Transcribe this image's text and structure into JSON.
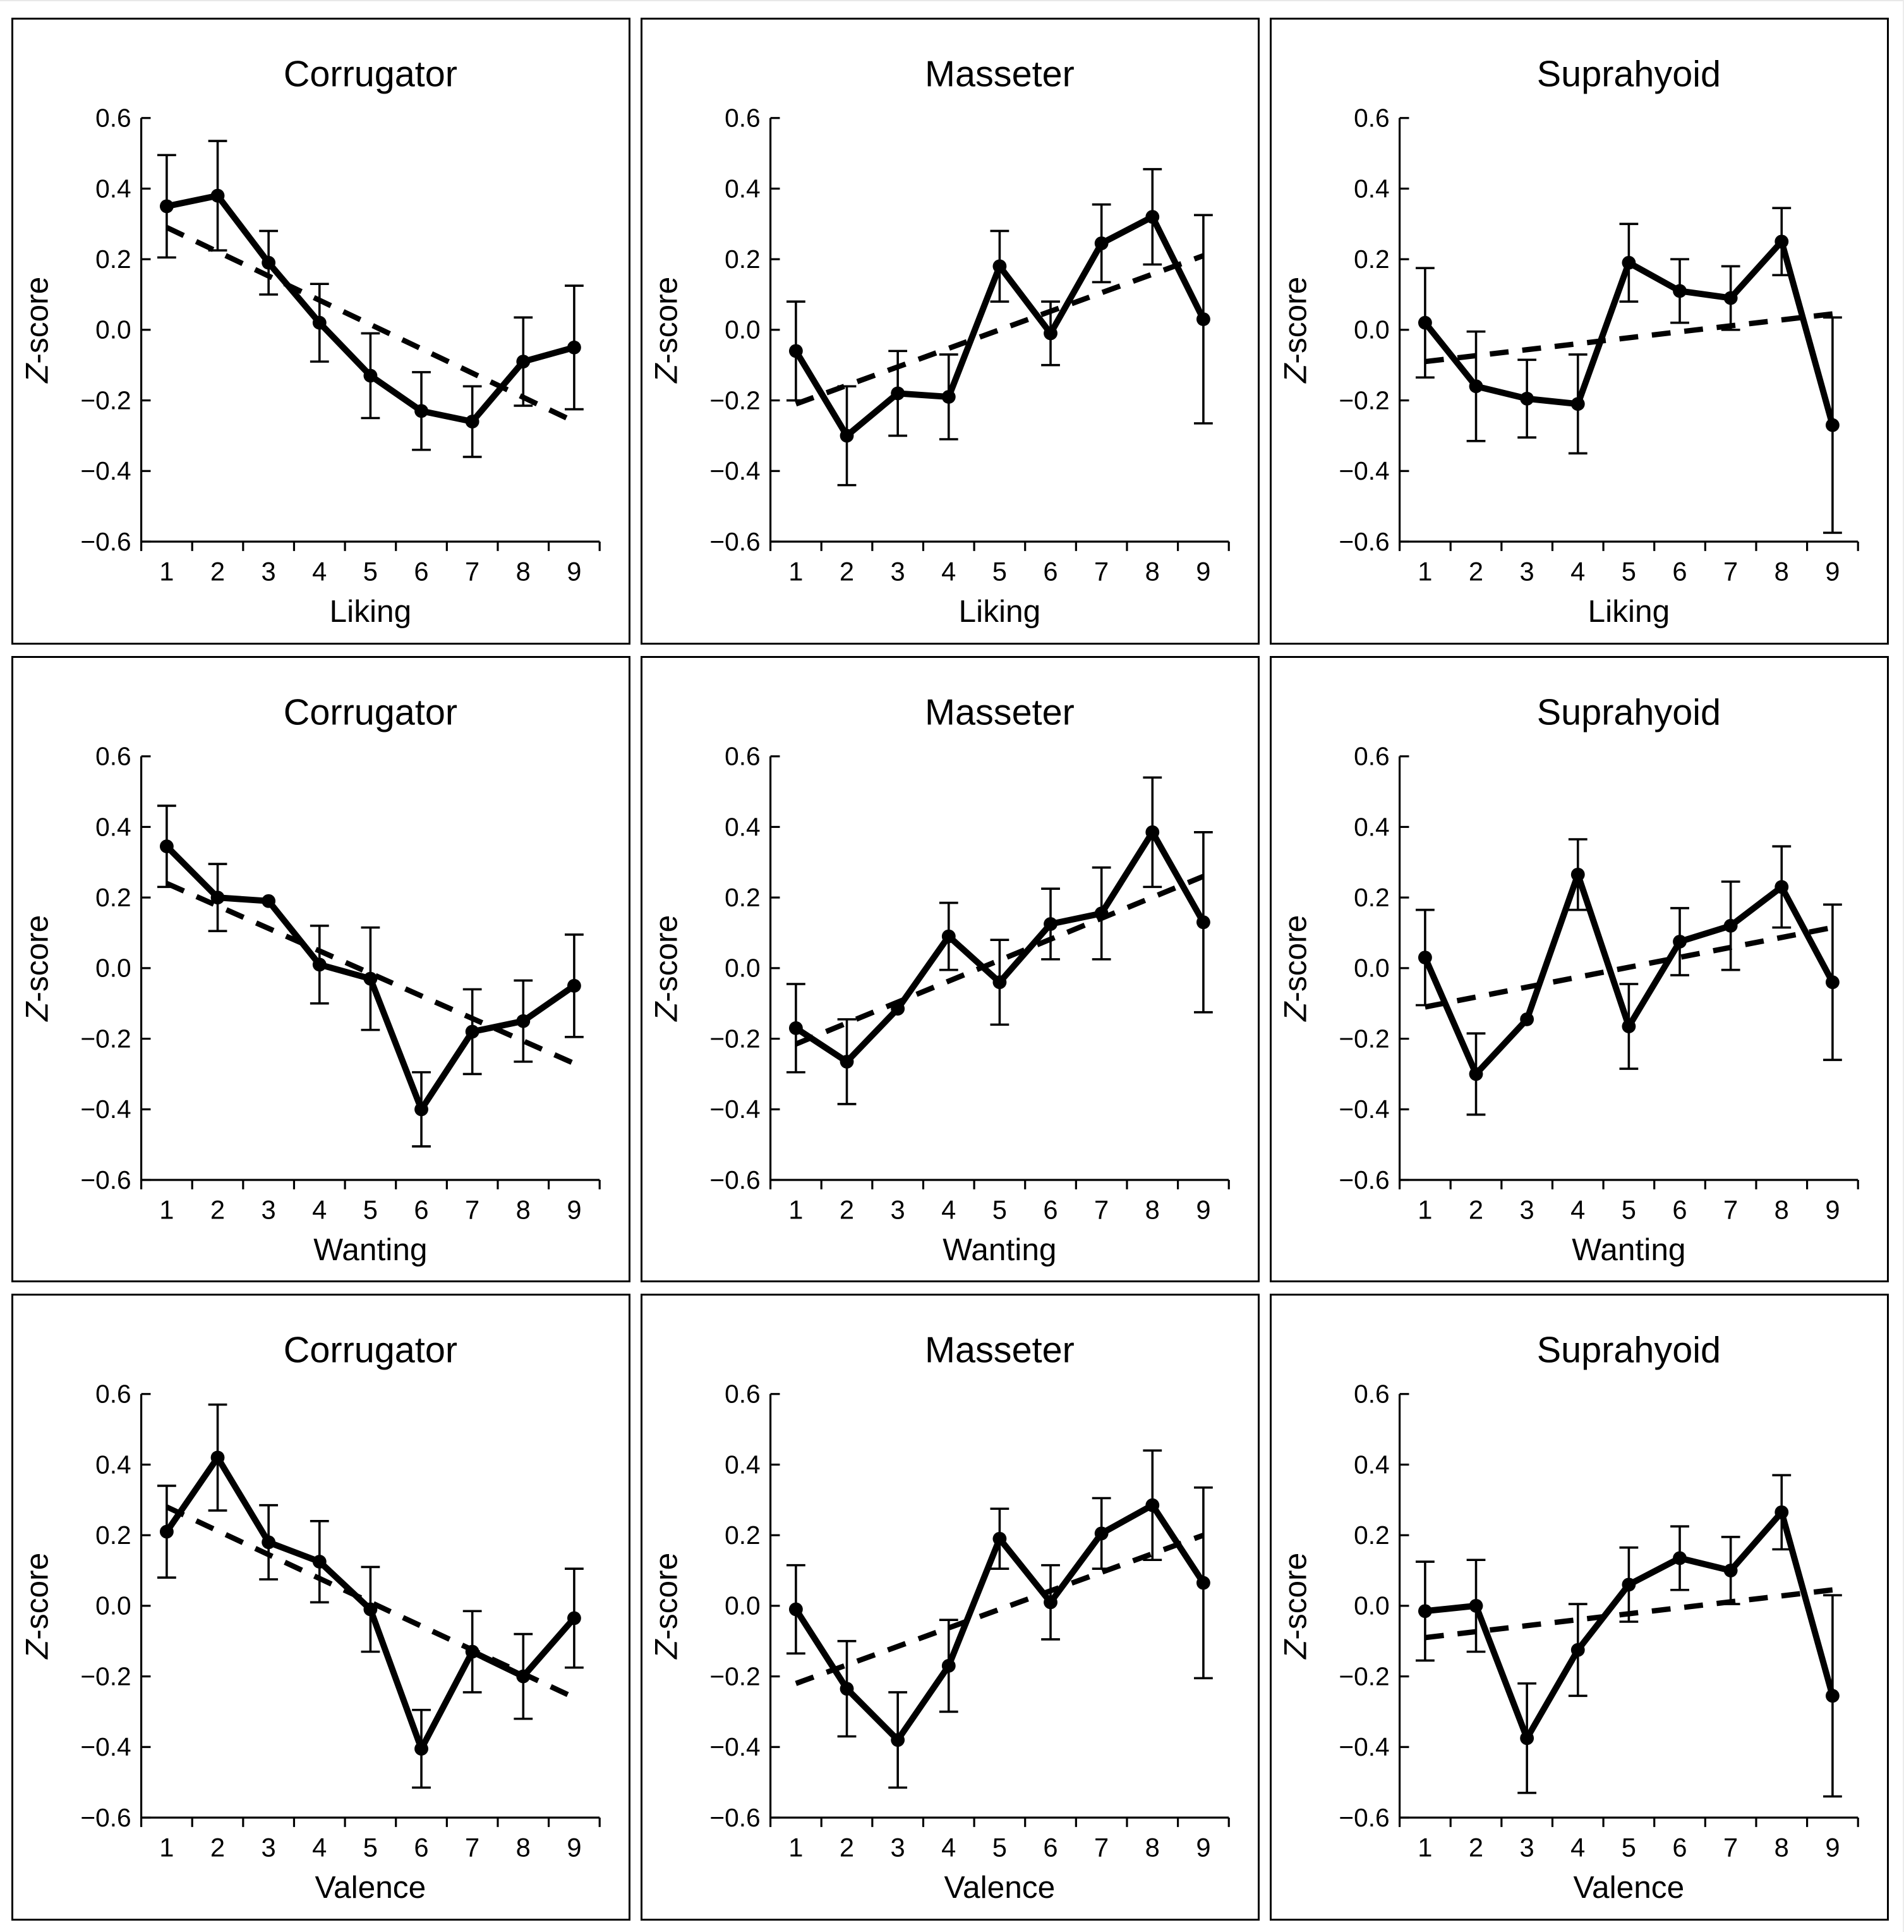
{
  "page": {
    "background": "#ffffff",
    "panel_border_color": "#000000",
    "series_color": "#000000",
    "trend_color": "#000000"
  },
  "chart_data": [
    {
      "type": "line",
      "title": "Corrugator",
      "xlabel": "Liking",
      "ylabel": "Z-score",
      "x": [
        1,
        2,
        3,
        4,
        5,
        6,
        7,
        8,
        9
      ],
      "values": [
        0.35,
        0.38,
        0.19,
        0.02,
        -0.13,
        -0.23,
        -0.26,
        -0.09,
        -0.05
      ],
      "errors": [
        0.145,
        0.155,
        0.09,
        0.11,
        0.12,
        0.11,
        0.1,
        0.125,
        0.175
      ],
      "trend": [
        0.29,
        -0.26
      ],
      "ylim": [
        -0.6,
        0.6
      ],
      "yticks": [
        0.6,
        0.4,
        0.2,
        0.0,
        -0.2,
        -0.4,
        -0.6
      ],
      "grid": false,
      "legend": "none"
    },
    {
      "type": "line",
      "title": "Masseter",
      "xlabel": "Liking",
      "ylabel": "Z-score",
      "x": [
        1,
        2,
        3,
        4,
        5,
        6,
        7,
        8,
        9
      ],
      "values": [
        -0.06,
        -0.3,
        -0.18,
        -0.19,
        0.18,
        -0.01,
        0.245,
        0.32,
        0.03
      ],
      "errors": [
        0.14,
        0.14,
        0.12,
        0.12,
        0.1,
        0.09,
        0.11,
        0.135,
        0.295
      ],
      "trend": [
        -0.21,
        0.21
      ],
      "ylim": [
        -0.6,
        0.6
      ],
      "yticks": [
        0.6,
        0.4,
        0.2,
        0.0,
        -0.2,
        -0.4,
        -0.6
      ],
      "grid": false,
      "legend": "none"
    },
    {
      "type": "line",
      "title": "Suprahyoid",
      "xlabel": "Liking",
      "ylabel": "Z-score",
      "x": [
        1,
        2,
        3,
        4,
        5,
        6,
        7,
        8,
        9
      ],
      "values": [
        0.02,
        -0.16,
        -0.195,
        -0.21,
        0.19,
        0.11,
        0.09,
        0.25,
        -0.27
      ],
      "errors": [
        0.155,
        0.155,
        0.11,
        0.14,
        0.11,
        0.09,
        0.09,
        0.095,
        0.305
      ],
      "trend": [
        -0.09,
        0.045
      ],
      "ylim": [
        -0.6,
        0.6
      ],
      "yticks": [
        0.6,
        0.4,
        0.2,
        0.0,
        -0.2,
        -0.4,
        -0.6
      ],
      "grid": false,
      "legend": "none"
    },
    {
      "type": "line",
      "title": "Corrugator",
      "xlabel": "Wanting",
      "ylabel": "Z-score",
      "x": [
        1,
        2,
        3,
        4,
        5,
        6,
        7,
        8,
        9
      ],
      "values": [
        0.345,
        0.2,
        0.19,
        0.01,
        -0.03,
        -0.4,
        -0.18,
        -0.15,
        -0.05
      ],
      "errors": [
        0.115,
        0.095,
        0.0,
        0.11,
        0.145,
        0.105,
        0.12,
        0.115,
        0.145
      ],
      "trend": [
        0.24,
        -0.27
      ],
      "ylim": [
        -0.6,
        0.6
      ],
      "yticks": [
        0.6,
        0.4,
        0.2,
        0.0,
        -0.2,
        -0.4,
        -0.6
      ],
      "grid": false,
      "legend": "none"
    },
    {
      "type": "line",
      "title": "Masseter",
      "xlabel": "Wanting",
      "ylabel": "Z-score",
      "x": [
        1,
        2,
        3,
        4,
        5,
        6,
        7,
        8,
        9
      ],
      "values": [
        -0.17,
        -0.265,
        -0.115,
        0.09,
        -0.04,
        0.125,
        0.155,
        0.385,
        0.13
      ],
      "errors": [
        0.125,
        0.12,
        0.0,
        0.095,
        0.12,
        0.1,
        0.13,
        0.155,
        0.255
      ],
      "trend": [
        -0.215,
        0.26
      ],
      "ylim": [
        -0.6,
        0.6
      ],
      "yticks": [
        0.6,
        0.4,
        0.2,
        0.0,
        -0.2,
        -0.4,
        -0.6
      ],
      "grid": false,
      "legend": "none"
    },
    {
      "type": "line",
      "title": "Suprahyoid",
      "xlabel": "Wanting",
      "ylabel": "Z-score",
      "x": [
        1,
        2,
        3,
        4,
        5,
        6,
        7,
        8,
        9
      ],
      "values": [
        0.03,
        -0.3,
        -0.145,
        0.265,
        -0.165,
        0.075,
        0.12,
        0.23,
        -0.04
      ],
      "errors": [
        0.135,
        0.115,
        0.0,
        0.1,
        0.12,
        0.095,
        0.125,
        0.115,
        0.22
      ],
      "trend": [
        -0.11,
        0.115
      ],
      "ylim": [
        -0.6,
        0.6
      ],
      "yticks": [
        0.6,
        0.4,
        0.2,
        0.0,
        -0.2,
        -0.4,
        -0.6
      ],
      "grid": false,
      "legend": "none"
    },
    {
      "type": "line",
      "title": "Corrugator",
      "xlabel": "Valence",
      "ylabel": "Z-score",
      "x": [
        1,
        2,
        3,
        4,
        5,
        6,
        7,
        8,
        9
      ],
      "values": [
        0.21,
        0.42,
        0.18,
        0.125,
        -0.01,
        -0.405,
        -0.13,
        -0.2,
        -0.035
      ],
      "errors": [
        0.13,
        0.15,
        0.105,
        0.115,
        0.12,
        0.11,
        0.115,
        0.12,
        0.14
      ],
      "trend": [
        0.28,
        -0.26
      ],
      "ylim": [
        -0.6,
        0.6
      ],
      "yticks": [
        0.6,
        0.4,
        0.2,
        0.0,
        -0.2,
        -0.4,
        -0.6
      ],
      "grid": false,
      "legend": "none"
    },
    {
      "type": "line",
      "title": "Masseter",
      "xlabel": "Valence",
      "ylabel": "Z-score",
      "x": [
        1,
        2,
        3,
        4,
        5,
        6,
        7,
        8,
        9
      ],
      "values": [
        -0.01,
        -0.235,
        -0.38,
        -0.17,
        0.19,
        0.01,
        0.205,
        0.285,
        0.065
      ],
      "errors": [
        0.125,
        0.135,
        0.135,
        0.13,
        0.085,
        0.105,
        0.1,
        0.155,
        0.27
      ],
      "trend": [
        -0.22,
        0.2
      ],
      "ylim": [
        -0.6,
        0.6
      ],
      "yticks": [
        0.6,
        0.4,
        0.2,
        0.0,
        -0.2,
        -0.4,
        -0.6
      ],
      "grid": false,
      "legend": "none"
    },
    {
      "type": "line",
      "title": "Suprahyoid",
      "xlabel": "Valence",
      "ylabel": "Z-score",
      "x": [
        1,
        2,
        3,
        4,
        5,
        6,
        7,
        8,
        9
      ],
      "values": [
        -0.015,
        0.0,
        -0.375,
        -0.125,
        0.06,
        0.135,
        0.1,
        0.265,
        -0.255
      ],
      "errors": [
        0.14,
        0.13,
        0.155,
        0.13,
        0.105,
        0.09,
        0.095,
        0.105,
        0.285
      ],
      "trend": [
        -0.09,
        0.045
      ],
      "ylim": [
        -0.6,
        0.6
      ],
      "yticks": [
        0.6,
        0.4,
        0.2,
        0.0,
        -0.2,
        -0.4,
        -0.6
      ],
      "grid": false,
      "legend": "none"
    }
  ]
}
